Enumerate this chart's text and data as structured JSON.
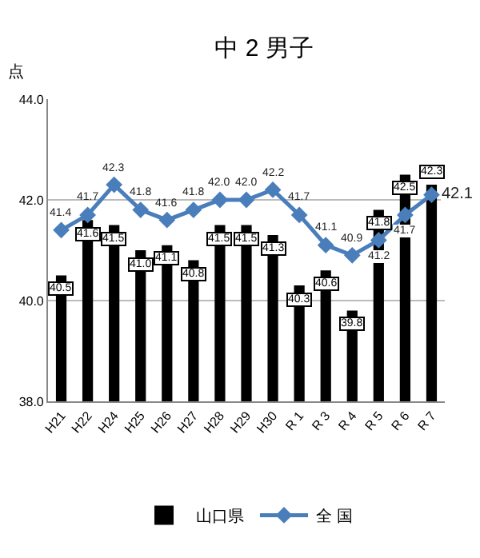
{
  "chart_data": {
    "type": "bar",
    "title": "中 2 男子",
    "ylabel": "点",
    "categories": [
      "H21",
      "H22",
      "H24",
      "H25",
      "H26",
      "H27",
      "H28",
      "H29",
      "H30",
      "R 1",
      "R 3",
      "R 4",
      "R 5",
      "R 6",
      "R 7"
    ],
    "series": [
      {
        "name": "山口県",
        "color": "#000000",
        "values": [
          40.5,
          41.6,
          41.5,
          41.0,
          41.1,
          40.8,
          41.5,
          41.5,
          41.3,
          40.3,
          40.6,
          39.8,
          41.8,
          42.5,
          42.3
        ],
        "value_labels": [
          "40.5",
          "41.6",
          "41.5",
          "41.0",
          "41.1",
          "40.8",
          "41.5",
          "41.5",
          "41.3",
          "40.3",
          "40.6",
          "39.8",
          "41.8",
          "42.5",
          "42.3"
        ]
      },
      {
        "name": "全 国",
        "type": "line",
        "color": "#4a7ebb",
        "marker": "diamond",
        "values": [
          41.4,
          41.7,
          42.3,
          41.8,
          41.6,
          41.8,
          42.0,
          42.0,
          42.2,
          41.7,
          41.1,
          40.9,
          41.2,
          41.7,
          42.1
        ],
        "value_labels": [
          "41.4",
          "41.7",
          "42.3",
          "41.8",
          "41.6",
          "41.8",
          "42.0",
          "42.0",
          "42.2",
          "41.7",
          "41.1",
          "40.9",
          "41.2",
          "41.7",
          "42.1"
        ]
      }
    ],
    "ylim": [
      38,
      44
    ],
    "yticks": [
      {
        "value": 38,
        "label": "38.0"
      },
      {
        "value": 40,
        "label": "40.0"
      },
      {
        "value": 42,
        "label": "42.0"
      },
      {
        "value": 44,
        "label": "44.0"
      }
    ],
    "grid": "y",
    "legend": "bottom"
  }
}
